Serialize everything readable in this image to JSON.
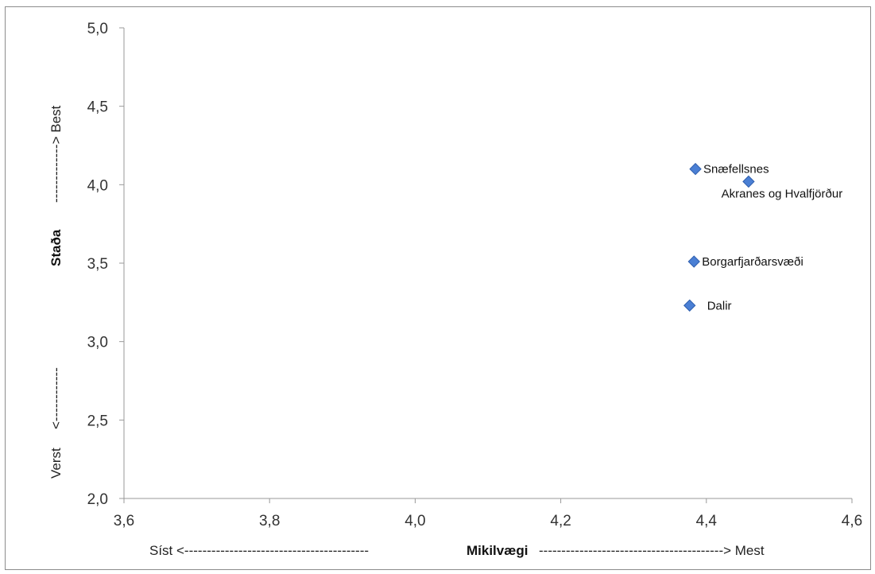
{
  "chart_data": {
    "type": "scatter",
    "title": "",
    "xlim": [
      3.6,
      4.6
    ],
    "ylim": [
      2.0,
      5.0
    ],
    "x_ticks": [
      "3,6",
      "3,8",
      "4,0",
      "4,2",
      "4,4",
      "4,6"
    ],
    "y_ticks": [
      "2,0",
      "2,5",
      "3,0",
      "3,5",
      "4,0",
      "4,5",
      "5,0"
    ],
    "x_tick_values": [
      3.6,
      3.8,
      4.0,
      4.2,
      4.4,
      4.6
    ],
    "y_tick_values": [
      2.0,
      2.5,
      3.0,
      3.5,
      4.0,
      4.5,
      5.0
    ],
    "xlabel": {
      "left": "Síst <-----------------------------------------",
      "center": "Mikilvægi",
      "right": "-----------------------------------------> Mest"
    },
    "ylabel": {
      "bottom": "Verst",
      "lower_arrow": "<------------",
      "center": "Staða",
      "upper_arrow": "-------------> Best"
    },
    "grid": false,
    "marker_color": "#4a7fd4",
    "marker_edge_color": "#2f5fae",
    "points": [
      {
        "label": "Snæfellsnes",
        "x": 4.385,
        "y": 4.1,
        "label_pos": "right"
      },
      {
        "label": "Akranes og Hvalfjörður",
        "x": 4.458,
        "y": 4.02,
        "label_pos": "below"
      },
      {
        "label": "Borgarfjarðarsvæði",
        "x": 4.383,
        "y": 3.51,
        "label_pos": "right"
      },
      {
        "label": "Dalir",
        "x": 4.377,
        "y": 3.23,
        "label_pos": "right"
      }
    ]
  }
}
